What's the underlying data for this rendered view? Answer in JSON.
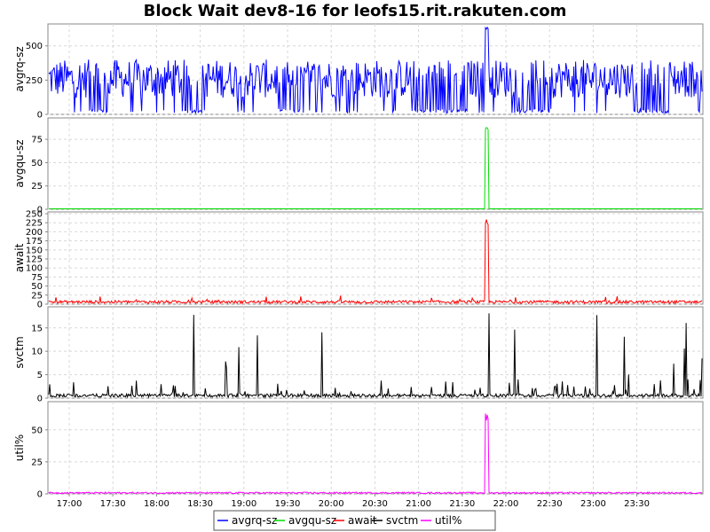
{
  "chart_data": {
    "type": "line",
    "title": "Block Wait dev8-16 for leofs15.rit.rakuten.com",
    "x_ticks": [
      "17:00",
      "17:30",
      "18:00",
      "18:30",
      "19:00",
      "19:30",
      "20:00",
      "20:30",
      "21:00",
      "21:30",
      "22:00",
      "22:30",
      "23:00",
      "23:30"
    ],
    "legend": {
      "position": "bottom",
      "entries": [
        {
          "name": "avgrq-sz",
          "color": "#0000ff"
        },
        {
          "name": "avgqu-sz",
          "color": "#00dd00"
        },
        {
          "name": "await",
          "color": "#ff0000"
        },
        {
          "name": "svctm",
          "color": "#000000"
        },
        {
          "name": "util%",
          "color": "#ff00ff"
        }
      ]
    },
    "grid": true,
    "panels": [
      {
        "id": "avgrq",
        "ylabel": "avgrq-sz",
        "color": "#0000ff",
        "ylim": [
          0,
          660
        ],
        "yticks": [
          0,
          250,
          500
        ],
        "series": {
          "name": "avgrq-sz",
          "baseline": 200,
          "amplitude": 200,
          "max": 640,
          "spike_time": "21:47",
          "spike_value": 640
        }
      },
      {
        "id": "avgqu",
        "ylabel": "avgqu-sz",
        "color": "#00dd00",
        "ylim": [
          0,
          98
        ],
        "yticks": [
          0,
          25,
          50,
          75
        ],
        "series": {
          "name": "avgqu-sz",
          "baseline": 0,
          "spike_time": "21:47",
          "spike_value": 88
        }
      },
      {
        "id": "await",
        "ylabel": "await",
        "color": "#ff0000",
        "ylim": [
          0,
          255
        ],
        "yticks": [
          0,
          25,
          50,
          75,
          100,
          125,
          150,
          175,
          200,
          225,
          250
        ],
        "series": {
          "name": "await",
          "baseline": 5,
          "spike_time": "21:47",
          "spike_value": 235
        }
      },
      {
        "id": "svctm",
        "ylabel": "svctm",
        "color": "#000000",
        "ylim": [
          0,
          19.5
        ],
        "yticks": [
          0,
          5,
          10,
          15
        ],
        "series": {
          "name": "svctm",
          "baseline": 0.5,
          "max": 18.5
        }
      },
      {
        "id": "util",
        "ylabel": "util%",
        "color": "#ff00ff",
        "ylim": [
          0,
          72
        ],
        "yticks": [
          0,
          25,
          50
        ],
        "series": {
          "name": "util%",
          "baseline": 0.5,
          "spike_time": "21:47",
          "spike_value": 65
        }
      }
    ]
  }
}
